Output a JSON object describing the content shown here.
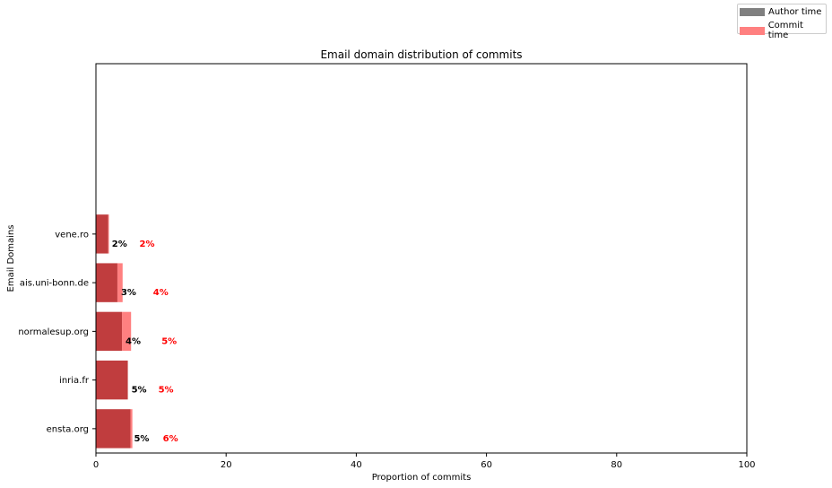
{
  "chart_data": {
    "type": "bar",
    "orientation": "horizontal",
    "title": "Email domain distribution of commits",
    "xlabel": "Proportion of commits",
    "ylabel": "Email Domains",
    "xlim": [
      0,
      100
    ],
    "xticks": [
      "0",
      "20",
      "40",
      "60",
      "80",
      "100"
    ],
    "categories": [
      "ensta.org",
      "inria.fr",
      "normalesup.org",
      "ais.uni-bonn.de",
      "vene.ro"
    ],
    "series": [
      {
        "name": "Author time",
        "color": "#808080",
        "values": [
          5.3,
          4.9,
          4.0,
          3.3,
          1.9
        ],
        "labels": [
          "5%",
          "5%",
          "4%",
          "3%",
          "2%"
        ],
        "label_color": "#000000"
      },
      {
        "name": "Commit time",
        "color": "#ff8080",
        "values": [
          5.6,
          4.9,
          5.4,
          4.1,
          2.0
        ],
        "labels": [
          "6%",
          "5%",
          "5%",
          "4%",
          "2%"
        ],
        "label_color": "#ff0000"
      }
    ],
    "overlap_color": "#c03d3e",
    "grid": false,
    "legend_position": "top-right"
  }
}
